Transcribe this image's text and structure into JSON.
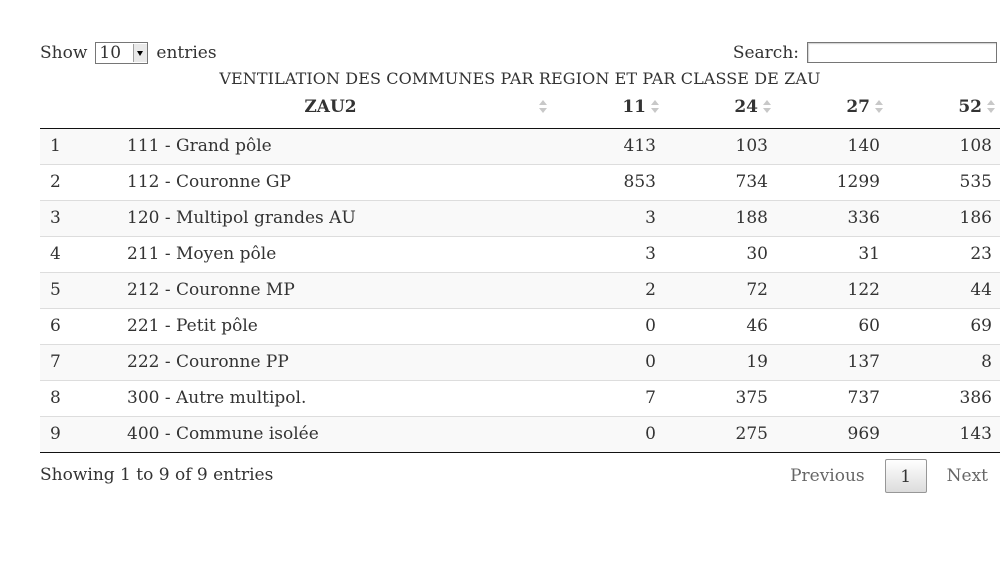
{
  "length_menu": {
    "prefix": "Show",
    "selected": "10",
    "suffix": "entries"
  },
  "search": {
    "label": "Search:",
    "value": ""
  },
  "caption": "VENTILATION DES COMMUNES PAR REGION ET PAR CLASSE DE ZAU",
  "columns": [
    "",
    "ZAU2",
    "11",
    "24",
    "27",
    "52"
  ],
  "rows": [
    {
      "idx": "1",
      "name": "111 - Grand pôle",
      "c11": "413",
      "c24": "103",
      "c27": "140",
      "c52": "108"
    },
    {
      "idx": "2",
      "name": "112 - Couronne GP",
      "c11": "853",
      "c24": "734",
      "c27": "1299",
      "c52": "535"
    },
    {
      "idx": "3",
      "name": "120 - Multipol grandes AU",
      "c11": "3",
      "c24": "188",
      "c27": "336",
      "c52": "186"
    },
    {
      "idx": "4",
      "name": "211 - Moyen pôle",
      "c11": "3",
      "c24": "30",
      "c27": "31",
      "c52": "23"
    },
    {
      "idx": "5",
      "name": "212 - Couronne MP",
      "c11": "2",
      "c24": "72",
      "c27": "122",
      "c52": "44"
    },
    {
      "idx": "6",
      "name": "221 - Petit pôle",
      "c11": "0",
      "c24": "46",
      "c27": "60",
      "c52": "69"
    },
    {
      "idx": "7",
      "name": "222 - Couronne PP",
      "c11": "0",
      "c24": "19",
      "c27": "137",
      "c52": "8"
    },
    {
      "idx": "8",
      "name": "300 - Autre multipol.",
      "c11": "7",
      "c24": "375",
      "c27": "737",
      "c52": "386"
    },
    {
      "idx": "9",
      "name": "400 - Commune isolée",
      "c11": "0",
      "c24": "275",
      "c27": "969",
      "c52": "143"
    }
  ],
  "info": "Showing 1 to 9 of 9 entries",
  "pagination": {
    "previous": "Previous",
    "current": "1",
    "next": "Next"
  }
}
